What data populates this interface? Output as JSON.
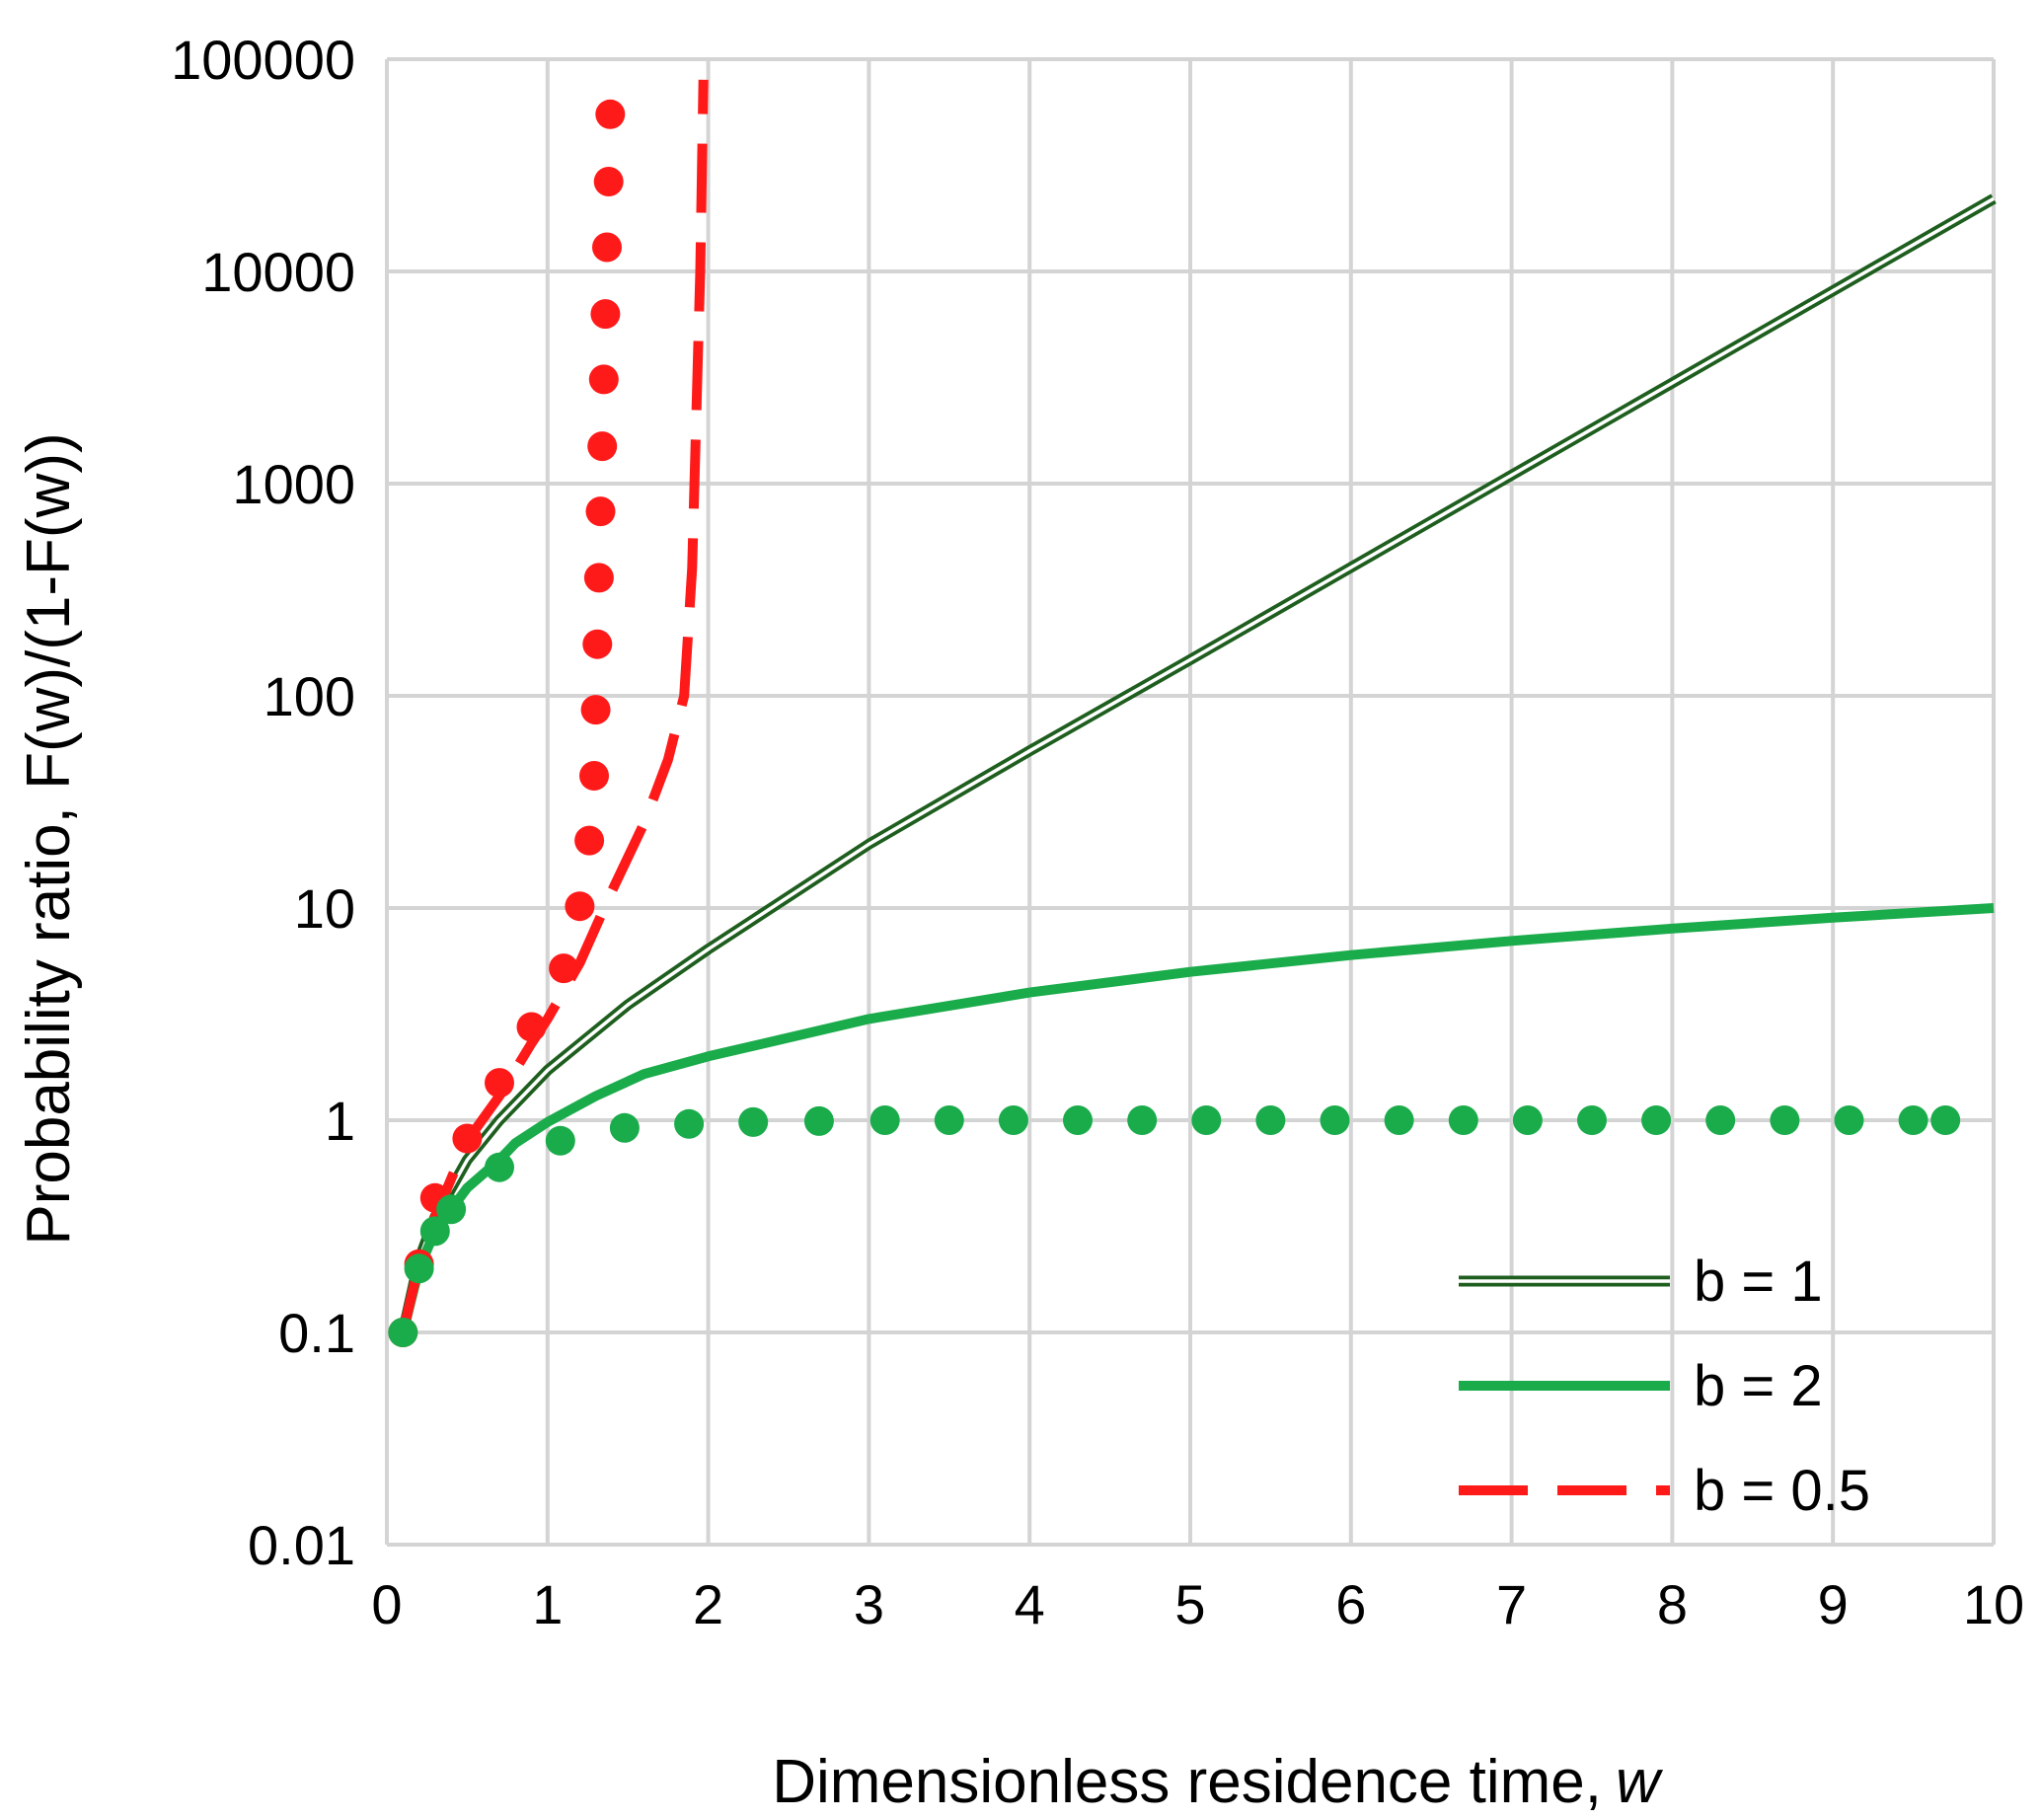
{
  "chart_data": {
    "type": "line",
    "xlabel": "Dimensionless residence time,",
    "xlabel_var": "w",
    "ylabel": "Probability ratio, F(w)/(1-F(w))",
    "xlim": [
      0,
      10
    ],
    "ylim": [
      0.01,
      100000
    ],
    "yscale": "log",
    "grid": true,
    "legend_position": "bottom-right",
    "x_ticks": [
      "0",
      "1",
      "2",
      "3",
      "4",
      "5",
      "6",
      "7",
      "8",
      "9",
      "10"
    ],
    "y_ticks": [
      "0.01",
      "0.1",
      "1",
      "10",
      "100",
      "1000",
      "10000",
      "100000"
    ],
    "series": [
      {
        "name": "b = 1",
        "style": "double-line",
        "color": "#1e5e1e",
        "points": [
          [
            0.1,
            0.1
          ],
          [
            0.2,
            0.22
          ],
          [
            0.3,
            0.35
          ],
          [
            0.5,
            0.65
          ],
          [
            0.7,
            1.0
          ],
          [
            1.0,
            1.72
          ],
          [
            1.5,
            3.5
          ],
          [
            2.0,
            6.4
          ],
          [
            3.0,
            20
          ],
          [
            4.0,
            55
          ],
          [
            5.0,
            148
          ],
          [
            6.0,
            403
          ],
          [
            7.0,
            1097
          ],
          [
            8.0,
            2981
          ],
          [
            9.0,
            8103
          ],
          [
            10.0,
            22026
          ]
        ]
      },
      {
        "name": "b = 2",
        "style": "solid",
        "color": "#1aab4b",
        "points": [
          [
            0.1,
            0.1
          ],
          [
            0.2,
            0.2
          ],
          [
            0.3,
            0.3
          ],
          [
            0.4,
            0.38
          ],
          [
            0.5,
            0.48
          ],
          [
            0.7,
            0.65
          ],
          [
            0.8,
            0.78
          ],
          [
            1.0,
            0.98
          ],
          [
            1.3,
            1.3
          ],
          [
            1.6,
            1.65
          ],
          [
            2.0,
            2.0
          ],
          [
            3.0,
            3.0
          ],
          [
            4.0,
            4.0
          ],
          [
            5.0,
            5.0
          ],
          [
            6.0,
            6.0
          ],
          [
            7.0,
            7.0
          ],
          [
            8.0,
            8.0
          ],
          [
            9.0,
            9.0
          ],
          [
            10.0,
            10.0
          ]
        ]
      },
      {
        "name": "b = 0.5",
        "style": "dashed",
        "color": "#ff1a1a",
        "points": [
          [
            0.1,
            0.1
          ],
          [
            0.2,
            0.21
          ],
          [
            0.3,
            0.35
          ],
          [
            0.5,
            0.8
          ],
          [
            0.7,
            1.3
          ],
          [
            0.9,
            2.3
          ],
          [
            1.0,
            3.0
          ],
          [
            1.2,
            5.5
          ],
          [
            1.4,
            12
          ],
          [
            1.6,
            25
          ],
          [
            1.75,
            50
          ],
          [
            1.85,
            100
          ],
          [
            1.9,
            400
          ],
          [
            1.95,
            10000
          ],
          [
            1.97,
            80000
          ]
        ]
      },
      {
        "name": "",
        "style": "dotted-red",
        "color": "#ff1a1a",
        "points": [
          [
            0.1,
            0.1
          ],
          [
            0.2,
            0.21
          ],
          [
            0.3,
            0.43
          ],
          [
            0.5,
            0.82
          ],
          [
            0.7,
            1.5
          ],
          [
            0.9,
            2.75
          ],
          [
            1.1,
            5.2
          ],
          [
            1.2,
            10.2
          ],
          [
            1.26,
            20.8
          ],
          [
            1.29,
            42
          ],
          [
            1.3,
            86
          ],
          [
            1.31,
            175
          ],
          [
            1.32,
            360
          ],
          [
            1.33,
            740
          ],
          [
            1.34,
            1500
          ],
          [
            1.35,
            3100
          ],
          [
            1.36,
            6300
          ],
          [
            1.37,
            13000
          ],
          [
            1.38,
            26500
          ],
          [
            1.39,
            55000
          ]
        ]
      },
      {
        "name": "",
        "style": "dotted-green",
        "color": "#1aab4b",
        "points": [
          [
            0.1,
            0.1
          ],
          [
            0.2,
            0.2
          ],
          [
            0.3,
            0.3
          ],
          [
            0.4,
            0.38
          ],
          [
            0.7,
            0.6
          ],
          [
            1.08,
            0.8
          ],
          [
            1.48,
            0.92
          ],
          [
            1.88,
            0.96
          ],
          [
            2.28,
            0.98
          ],
          [
            2.69,
            0.99
          ],
          [
            3.1,
            1.0
          ],
          [
            3.5,
            1.0
          ],
          [
            3.9,
            1.0
          ],
          [
            4.3,
            1.0
          ],
          [
            4.7,
            1.0
          ],
          [
            5.1,
            1.0
          ],
          [
            5.5,
            1.0
          ],
          [
            5.9,
            1.0
          ],
          [
            6.3,
            1.0
          ],
          [
            6.7,
            1.0
          ],
          [
            7.1,
            1.0
          ],
          [
            7.5,
            1.0
          ],
          [
            7.9,
            1.0
          ],
          [
            8.3,
            1.0
          ],
          [
            8.7,
            1.0
          ],
          [
            9.1,
            1.0
          ],
          [
            9.5,
            1.0
          ],
          [
            9.7,
            1.0
          ]
        ]
      }
    ],
    "legend": [
      {
        "label": "b = 1",
        "style": "double-line",
        "color": "#1e5e1e"
      },
      {
        "label": "b = 2",
        "style": "solid",
        "color": "#1aab4b"
      },
      {
        "label": "b = 0.5",
        "style": "dashed",
        "color": "#ff1a1a"
      }
    ]
  }
}
